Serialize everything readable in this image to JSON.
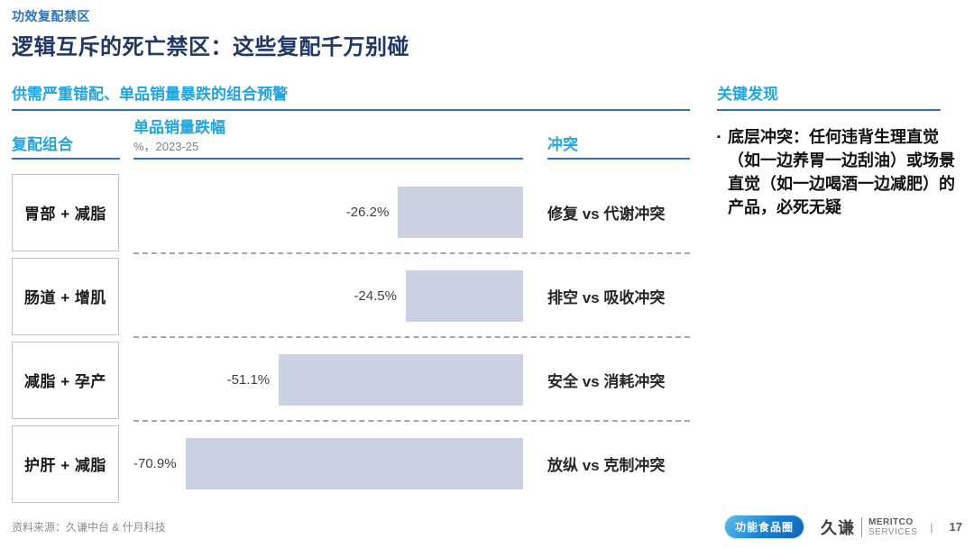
{
  "page": {
    "eyebrow": "功效复配禁区",
    "title": "逻辑互斥的死亡禁区：这些复配千万别碰"
  },
  "table": {
    "section_title": "供需严重错配、单品销量暴跌的组合预警",
    "col_combo": "复配组合",
    "col_metric": "单品销量跌幅",
    "col_metric_sub": "%，2023-25",
    "col_conflict": "冲突",
    "rows": [
      {
        "combo": "胃部 + 减脂",
        "value_label": "-26.2%",
        "conflict": "修复 vs 代谢冲突"
      },
      {
        "combo": "肠道 + 增肌",
        "value_label": "-24.5%",
        "conflict": "排空 vs 吸收冲突"
      },
      {
        "combo": "减脂 + 孕产",
        "value_label": "-51.1%",
        "conflict": "安全 vs 消耗冲突"
      },
      {
        "combo": "护肝 + 减脂",
        "value_label": "-70.9%",
        "conflict": "放纵 vs 克制冲突"
      }
    ]
  },
  "key_findings": {
    "title": "关键发现",
    "bullet_marker": "▪",
    "bullet_lead": "底层冲突：",
    "bullet_body": "任何违背生理直觉（如一边养胃一边刮油）或场景直觉（如一边喝酒一边减肥）的产品，必死无疑"
  },
  "footer": {
    "source": "资料来源：久谦中台 & 什月科技",
    "logo_badge": "功能食品圈",
    "brand_cn": "久谦",
    "brand_en_line1": "MERITCO",
    "brand_en_line2": "SERVICES",
    "divider": "|",
    "page_number": "17"
  },
  "chart_data": {
    "type": "bar",
    "orientation": "horizontal",
    "title": "单品销量跌幅",
    "unit_label": "%，2023-25",
    "categories": [
      "胃部 + 减脂",
      "肠道 + 增肌",
      "减脂 + 孕产",
      "护肝 + 减脂"
    ],
    "values": [
      -26.2,
      -24.5,
      -51.1,
      -70.9
    ],
    "data_labels": [
      "-26.2%",
      "-24.5%",
      "-51.1%",
      "-70.9%"
    ],
    "annotations": [
      "修复 vs 代谢冲突",
      "排空 vs 吸收冲突",
      "安全 vs 消耗冲突",
      "放纵 vs 克制冲突"
    ],
    "bar_color": "#c9d1e2",
    "bars_right_aligned": true,
    "xlim": [
      -80,
      0
    ],
    "grid": false,
    "legend": false
  },
  "colors": {
    "accent_cyan": "#21a5de",
    "accent_steel_blue": "#2e74b6",
    "title_navy": "#1f3864",
    "bar_fill": "#c9d1e2",
    "dashed_separator": "#a6a6a6"
  }
}
